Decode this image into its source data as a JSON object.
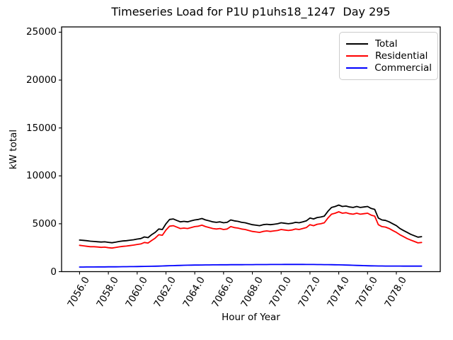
{
  "figure": {
    "title": "Timeseries Load for P1U p1uhs18_1247  Day 295",
    "xlabel": "Hour of Year",
    "ylabel": "kW total"
  },
  "chart_data": {
    "type": "line",
    "title": "Timeseries Load for P1U p1uhs18_1247  Day 295",
    "xlabel": "Hour of Year",
    "ylabel": "kW total",
    "grid": false,
    "legend_position": "upper right",
    "xlim": [
      7054.75,
      7081.05
    ],
    "ylim": [
      0,
      25550
    ],
    "x_ticks": [
      7056,
      7058,
      7060,
      7062,
      7064,
      7066,
      7068,
      7070,
      7072,
      7074,
      7076,
      7078
    ],
    "x_tick_labels": [
      "7056.0",
      "7058.0",
      "7060.0",
      "7062.0",
      "7064.0",
      "7066.0",
      "7068.0",
      "7070.0",
      "7072.0",
      "7074.0",
      "7076.0",
      "7078.0"
    ],
    "y_ticks": [
      0,
      5000,
      10000,
      15000,
      20000,
      25000
    ],
    "y_tick_labels": [
      "0",
      "5000",
      "10000",
      "15000",
      "20000",
      "25000"
    ],
    "x_start": 7056.0,
    "x_step": 0.25,
    "series": [
      {
        "name": "Total",
        "color": "#000000",
        "values": [
          3300,
          3270,
          3230,
          3180,
          3150,
          3120,
          3090,
          3110,
          3060,
          3020,
          3080,
          3150,
          3200,
          3230,
          3280,
          3330,
          3400,
          3450,
          3620,
          3550,
          3850,
          4100,
          4450,
          4400,
          5000,
          5450,
          5500,
          5350,
          5200,
          5250,
          5200,
          5300,
          5400,
          5450,
          5550,
          5400,
          5300,
          5200,
          5150,
          5200,
          5100,
          5150,
          5400,
          5300,
          5250,
          5150,
          5100,
          5000,
          4900,
          4850,
          4800,
          4900,
          4950,
          4900,
          4950,
          5000,
          5100,
          5050,
          5000,
          5050,
          5150,
          5100,
          5200,
          5300,
          5600,
          5500,
          5650,
          5700,
          5800,
          6300,
          6700,
          6800,
          6950,
          6800,
          6850,
          6750,
          6700,
          6800,
          6700,
          6750,
          6800,
          6600,
          6500,
          5600,
          5400,
          5350,
          5200,
          5000,
          4800,
          4500,
          4300,
          4100,
          3900,
          3750,
          3600,
          3650
        ]
      },
      {
        "name": "Residential",
        "color": "#ff0000",
        "values": [
          2750,
          2700,
          2650,
          2600,
          2600,
          2570,
          2540,
          2560,
          2500,
          2460,
          2520,
          2590,
          2640,
          2670,
          2720,
          2770,
          2840,
          2890,
          3050,
          2990,
          3250,
          3500,
          3850,
          3800,
          4350,
          4750,
          4800,
          4650,
          4500,
          4550,
          4500,
          4600,
          4700,
          4750,
          4850,
          4700,
          4600,
          4500,
          4450,
          4500,
          4400,
          4450,
          4700,
          4600,
          4550,
          4450,
          4400,
          4300,
          4200,
          4150,
          4100,
          4200,
          4250,
          4200,
          4250,
          4300,
          4400,
          4350,
          4300,
          4350,
          4450,
          4400,
          4500,
          4600,
          4900,
          4800,
          4950,
          5000,
          5100,
          5600,
          6000,
          6100,
          6250,
          6100,
          6150,
          6050,
          6000,
          6100,
          6000,
          6050,
          6100,
          5900,
          5800,
          4900,
          4700,
          4650,
          4500,
          4300,
          4100,
          3850,
          3650,
          3450,
          3300,
          3150,
          3000,
          3050
        ]
      },
      {
        "name": "Commercial",
        "color": "#0000ff",
        "values": [
          480,
          482,
          485,
          487,
          490,
          492,
          495,
          497,
          500,
          503,
          506,
          510,
          514,
          518,
          522,
          527,
          532,
          538,
          545,
          552,
          560,
          570,
          580,
          592,
          605,
          618,
          630,
          642,
          652,
          662,
          670,
          678,
          685,
          690,
          695,
          700,
          705,
          708,
          712,
          715,
          718,
          720,
          722,
          724,
          726,
          728,
          730,
          732,
          734,
          736,
          738,
          740,
          742,
          744,
          746,
          748,
          750,
          752,
          753,
          754,
          755,
          754,
          752,
          750,
          748,
          745,
          742,
          738,
          734,
          730,
          725,
          718,
          710,
          700,
          690,
          678,
          665,
          652,
          640,
          628,
          617,
          608,
          600,
          594,
          590,
          587,
          585,
          583,
          582,
          581,
          580,
          580,
          580,
          580,
          580,
          580
        ]
      }
    ]
  }
}
